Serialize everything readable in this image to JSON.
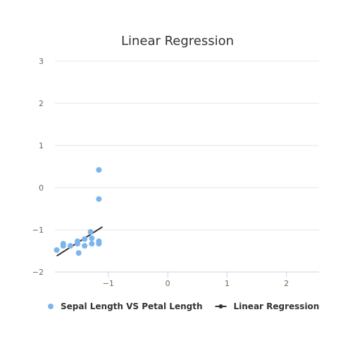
{
  "chart_data": {
    "type": "scatter",
    "title": "Linear Regression",
    "xlabel": "",
    "ylabel": "",
    "xlim": [
      -1.9,
      2.55
    ],
    "ylim": [
      -2,
      3
    ],
    "x_ticks": [
      -1,
      0,
      1,
      2
    ],
    "y_ticks": [
      -2,
      -1,
      0,
      1,
      2,
      3
    ],
    "x_tick_labels": [
      "−1",
      "0",
      "1",
      "2"
    ],
    "y_tick_labels": [
      "−2",
      "−1",
      "0",
      "1",
      "2",
      "3"
    ],
    "grid": true,
    "legend_position": "bottom",
    "series": [
      {
        "name": "Sepal Length VS Petal Length",
        "kind": "scatter",
        "color": "#7cb5ec",
        "points": [
          [
            -1.87,
            -1.48
          ],
          [
            -1.76,
            -1.33
          ],
          [
            -1.76,
            -1.38
          ],
          [
            -1.64,
            -1.38
          ],
          [
            -1.52,
            -1.27
          ],
          [
            -1.52,
            -1.33
          ],
          [
            -1.5,
            -1.55
          ],
          [
            -1.4,
            -1.22
          ],
          [
            -1.4,
            -1.38
          ],
          [
            -1.3,
            -1.05
          ],
          [
            -1.28,
            -1.2
          ],
          [
            -1.28,
            -1.33
          ],
          [
            -1.16,
            0.42
          ],
          [
            -1.16,
            -0.27
          ],
          [
            -1.16,
            -1.27
          ],
          [
            -1.16,
            -1.3
          ],
          [
            -1.16,
            -1.33
          ]
        ]
      },
      {
        "name": "Linear Regression",
        "kind": "line",
        "color": "#333333",
        "points": [
          [
            -1.87,
            -1.62
          ],
          [
            -1.1,
            -0.93
          ]
        ]
      }
    ]
  },
  "colors": {
    "scatter_series": "#7cb5ec",
    "regression_line": "#333333",
    "gridline": "#e6e6e6",
    "axis_line": "#ccd6eb"
  }
}
